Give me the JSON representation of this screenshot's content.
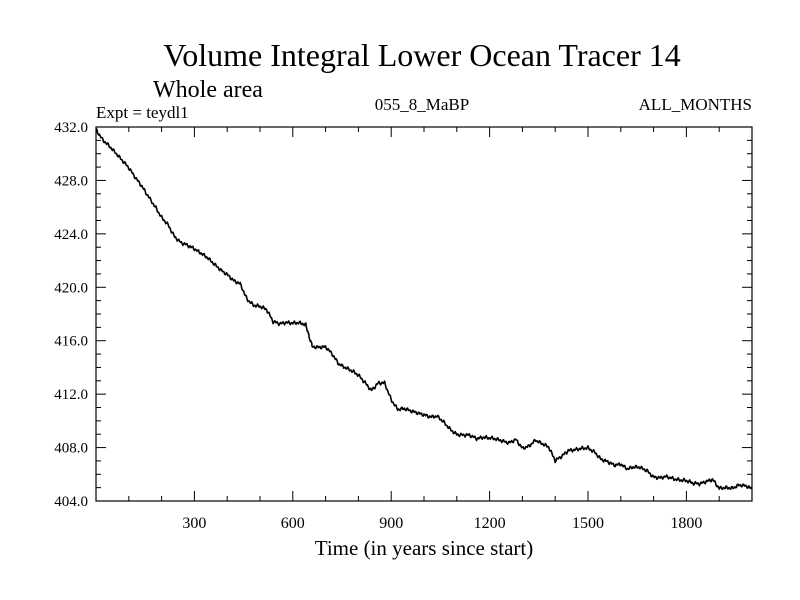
{
  "chart_data": {
    "type": "line",
    "title": "Volume Integral Lower Ocean Tracer 14",
    "subtitle": "Whole area",
    "expt_label": "Expt = teydl1",
    "center_label": "055_8_MaBP",
    "right_label": "ALL_MONTHS",
    "xlabel": "Time (in years since start)",
    "ylabel": "",
    "xlim": [
      0,
      2000
    ],
    "ylim": [
      404.0,
      432.0
    ],
    "x_ticks": [
      300,
      600,
      900,
      1200,
      1500,
      1800
    ],
    "x_tick_labels": [
      "300",
      "600",
      "900",
      "1200",
      "1500",
      "1800"
    ],
    "y_ticks": [
      404,
      408,
      412,
      416,
      420,
      424,
      428,
      432
    ],
    "y_tick_labels": [
      "404.0",
      "408.0",
      "412.0",
      "416.0",
      "420.0",
      "424.0",
      "428.0",
      "432.0"
    ],
    "grid": false,
    "line_color": "#000000",
    "series": [
      {
        "name": "Lower Ocean Tracer 14",
        "x": [
          0,
          20,
          40,
          60,
          80,
          100,
          120,
          140,
          160,
          180,
          200,
          220,
          240,
          260,
          280,
          300,
          320,
          340,
          360,
          380,
          400,
          420,
          440,
          460,
          480,
          500,
          520,
          540,
          560,
          580,
          600,
          620,
          640,
          650,
          660,
          680,
          700,
          720,
          740,
          760,
          780,
          800,
          820,
          840,
          860,
          880,
          900,
          920,
          940,
          960,
          980,
          1000,
          1020,
          1040,
          1060,
          1080,
          1100,
          1120,
          1140,
          1160,
          1180,
          1200,
          1220,
          1240,
          1260,
          1280,
          1300,
          1320,
          1340,
          1360,
          1380,
          1400,
          1420,
          1440,
          1460,
          1480,
          1500,
          1520,
          1540,
          1560,
          1580,
          1600,
          1620,
          1640,
          1660,
          1680,
          1700,
          1720,
          1740,
          1760,
          1780,
          1800,
          1820,
          1840,
          1860,
          1880,
          1900,
          1920,
          1940,
          1960,
          1980,
          2000
        ],
        "y": [
          431.8,
          431.0,
          430.6,
          430.1,
          429.5,
          428.9,
          428.2,
          427.6,
          426.8,
          426.0,
          425.2,
          424.7,
          423.8,
          423.3,
          423.1,
          422.9,
          422.6,
          422.2,
          421.7,
          421.3,
          421.0,
          420.5,
          420.2,
          419.1,
          418.7,
          418.6,
          418.3,
          417.4,
          417.3,
          417.4,
          417.3,
          417.3,
          417.2,
          416.3,
          415.6,
          415.5,
          415.5,
          415.0,
          414.3,
          414.0,
          413.7,
          413.4,
          412.9,
          412.3,
          412.8,
          412.8,
          411.6,
          410.9,
          410.9,
          410.7,
          410.6,
          410.5,
          410.3,
          410.3,
          409.9,
          409.4,
          409.0,
          408.9,
          408.9,
          408.7,
          408.8,
          408.7,
          408.6,
          408.5,
          408.4,
          408.6,
          407.9,
          408.1,
          408.6,
          408.3,
          408.0,
          407.0,
          407.4,
          407.8,
          407.8,
          407.9,
          408.0,
          407.7,
          407.1,
          406.9,
          406.7,
          406.8,
          406.4,
          406.5,
          406.5,
          406.3,
          405.8,
          405.7,
          405.8,
          405.7,
          405.6,
          405.5,
          405.3,
          405.3,
          405.5,
          405.6,
          404.9,
          405.0,
          405.0,
          405.2,
          405.1,
          404.9
        ]
      }
    ]
  }
}
